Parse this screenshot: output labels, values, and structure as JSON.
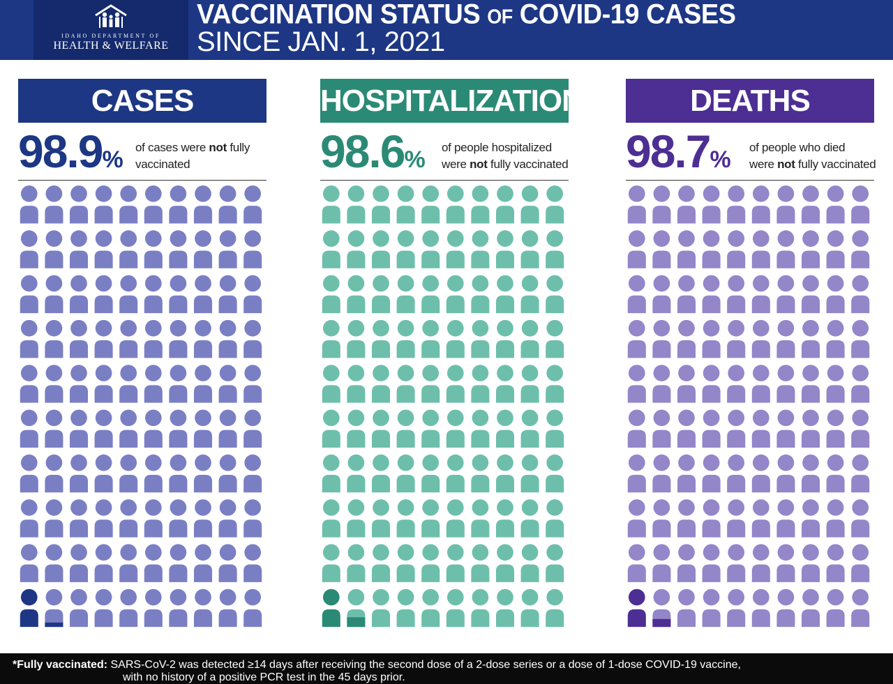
{
  "header": {
    "logo": {
      "line1": "IDAHO DEPARTMENT OF",
      "line2": "HEALTH & WELFARE",
      "icon": "family-house-icon"
    },
    "title_part1": "VACCINATION STATUS ",
    "title_part2": "OF",
    "title_part3": " COVID-19 CASES",
    "subtitle": "SINCE JAN. 1, 2021"
  },
  "columns": [
    {
      "key": "cases",
      "banner": "CASES",
      "percent": "98.9",
      "percent_unit": "%",
      "desc_line1_a": "of cases were ",
      "desc_line1_bold": "not",
      "desc_line1_b": " fully",
      "desc_line2_a": "vaccinated",
      "desc_line2_bold": "",
      "desc_line2_b": "",
      "banner_color": "#1d3785",
      "pct_color": "#1d3785",
      "icon_color": "#7a7fc4",
      "highlight_color": "#1d3785",
      "highlight_fraction": 0.011
    },
    {
      "key": "hospitalizations",
      "banner": "HOSPITALIZATIONS",
      "percent": "98.6",
      "percent_unit": "%",
      "desc_line1_a": "of people hospitalized",
      "desc_line1_bold": "",
      "desc_line1_b": "",
      "desc_line2_a": "were ",
      "desc_line2_bold": "not",
      "desc_line2_b": " fully vaccinated",
      "banner_color": "#2b8a75",
      "pct_color": "#2b8a75",
      "icon_color": "#6dbfac",
      "highlight_color": "#2b8a75",
      "highlight_fraction": 0.014
    },
    {
      "key": "deaths",
      "banner": "DEATHS",
      "percent": "98.7",
      "percent_unit": "%",
      "desc_line1_a": "of people who died",
      "desc_line1_bold": "",
      "desc_line1_b": "",
      "desc_line2_a": "were ",
      "desc_line2_bold": "not",
      "desc_line2_b": " fully vaccinated",
      "banner_color": "#4d2e93",
      "pct_color": "#4d2e93",
      "icon_color": "#9386c9",
      "highlight_color": "#4d2e93",
      "highlight_fraction": 0.013
    }
  ],
  "footer": {
    "label": "*Fully vaccinated:",
    "line1": " SARS-CoV-2 was detected ≥14 days after receiving the second dose of a 2-dose series or a dose of 1-dose COVID-19 vaccine,",
    "line2": "with no history of a positive PCR test in the 45 days prior."
  }
}
